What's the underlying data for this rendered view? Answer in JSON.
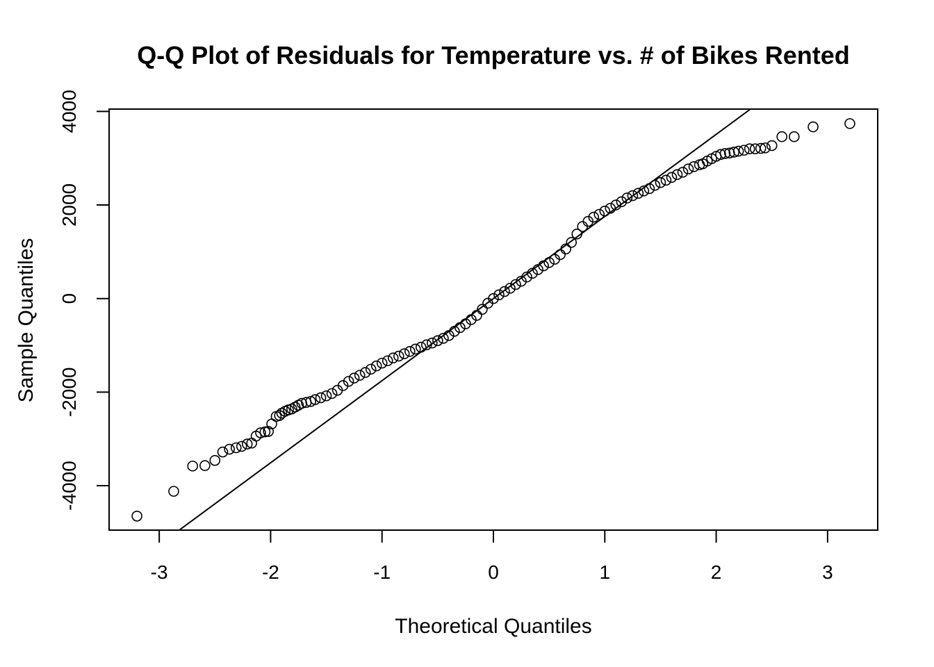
{
  "chart_data": {
    "type": "scatter",
    "title": "Q-Q Plot of Residuals for Temperature vs. # of Bikes Rented",
    "xlabel": "Theoretical Quantiles",
    "ylabel": "Sample Quantiles",
    "xlim": [
      -3.45,
      3.45
    ],
    "ylim": [
      -4950,
      4050
    ],
    "x_ticks": [
      -3,
      -2,
      -1,
      0,
      1,
      2,
      3
    ],
    "y_ticks": [
      -4000,
      -2000,
      0,
      2000,
      4000
    ],
    "grid": false,
    "reference_line": {
      "slope": 1755,
      "intercept": 0
    },
    "series": [
      {
        "x": [
          -3.2,
          -2.87,
          -2.7,
          -2.59,
          -2.5,
          -2.43,
          -2.37,
          -2.31,
          -2.26,
          -2.21,
          -2.17,
          -2.13,
          -2.09,
          -2.05,
          -2.02,
          -1.99,
          -1.95,
          -1.92,
          -1.9,
          -1.87,
          -1.84,
          -1.81,
          -1.78,
          -1.75,
          -1.72,
          -1.68,
          -1.64,
          -1.6,
          -1.55,
          -1.5,
          -1.45,
          -1.4,
          -1.35,
          -1.3,
          -1.25,
          -1.2,
          -1.15,
          -1.1,
          -1.05,
          -1.0,
          -0.95,
          -0.9,
          -0.85,
          -0.8,
          -0.75,
          -0.7,
          -0.65,
          -0.6,
          -0.55,
          -0.5,
          -0.45,
          -0.4,
          -0.35,
          -0.3,
          -0.25,
          -0.2,
          -0.15,
          -0.1,
          -0.05,
          0.0,
          0.05,
          0.1,
          0.15,
          0.2,
          0.25,
          0.3,
          0.35,
          0.4,
          0.45,
          0.5,
          0.55,
          0.6,
          0.65,
          0.7,
          0.75,
          0.8,
          0.85,
          0.9,
          0.95,
          1.0,
          1.05,
          1.1,
          1.15,
          1.2,
          1.25,
          1.3,
          1.35,
          1.4,
          1.45,
          1.5,
          1.55,
          1.6,
          1.65,
          1.7,
          1.75,
          1.8,
          1.85,
          1.88,
          1.92,
          1.96,
          2.0,
          2.04,
          2.08,
          2.12,
          2.16,
          2.2,
          2.25,
          2.3,
          2.35,
          2.4,
          2.44,
          2.5,
          2.59,
          2.7,
          2.87,
          3.2
        ],
        "y": [
          -4650,
          -4120,
          -3580,
          -3570,
          -3460,
          -3280,
          -3220,
          -3190,
          -3160,
          -3110,
          -3090,
          -2940,
          -2870,
          -2850,
          -2840,
          -2680,
          -2520,
          -2500,
          -2450,
          -2410,
          -2380,
          -2360,
          -2320,
          -2280,
          -2240,
          -2220,
          -2200,
          -2160,
          -2120,
          -2080,
          -2030,
          -1960,
          -1860,
          -1770,
          -1700,
          -1640,
          -1580,
          -1510,
          -1440,
          -1380,
          -1330,
          -1270,
          -1230,
          -1180,
          -1130,
          -1080,
          -1040,
          -990,
          -950,
          -900,
          -850,
          -790,
          -700,
          -620,
          -540,
          -450,
          -360,
          -230,
          -100,
          0,
          80,
          150,
          220,
          300,
          370,
          460,
          540,
          620,
          700,
          770,
          840,
          940,
          1060,
          1200,
          1380,
          1540,
          1650,
          1740,
          1800,
          1870,
          1930,
          2000,
          2070,
          2150,
          2200,
          2250,
          2300,
          2350,
          2420,
          2480,
          2530,
          2590,
          2650,
          2700,
          2770,
          2820,
          2860,
          2880,
          2940,
          2990,
          3040,
          3080,
          3100,
          3110,
          3130,
          3150,
          3170,
          3200,
          3200,
          3210,
          3220,
          3270,
          3460,
          3460,
          3670,
          3740
        ]
      }
    ]
  }
}
